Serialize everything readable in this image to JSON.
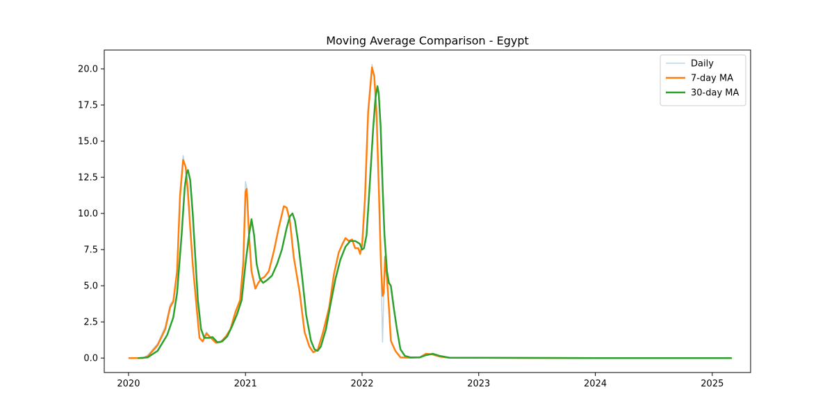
{
  "chart_data": {
    "type": "line",
    "title": "Moving Average Comparison - Egypt",
    "xlabel": "",
    "ylabel": "",
    "xlim": [
      "2019-10-17",
      "2025-05-01"
    ],
    "ylim": [
      -1.0,
      21.3
    ],
    "x_ticks": [
      "2020-01-01",
      "2021-01-01",
      "2022-01-01",
      "2023-01-01",
      "2024-01-01",
      "2025-01-01"
    ],
    "x_tick_labels": [
      "2020",
      "2021",
      "2022",
      "2023",
      "2024",
      "2025"
    ],
    "y_ticks": [
      0.0,
      2.5,
      5.0,
      7.5,
      10.0,
      12.5,
      15.0,
      17.5,
      20.0
    ],
    "y_tick_labels": [
      "0.0",
      "2.5",
      "5.0",
      "7.5",
      "10.0",
      "12.5",
      "15.0",
      "17.5",
      "20.0"
    ],
    "grid": false,
    "legend": "top-right",
    "series": [
      {
        "name": "Daily",
        "color": "#1f77b4",
        "opacity": 0.3,
        "width": 1.5,
        "points": [
          [
            "2020-01-03",
            0
          ],
          [
            "2020-02-15",
            0
          ],
          [
            "2020-03-01",
            0.2
          ],
          [
            "2020-04-01",
            1.0
          ],
          [
            "2020-04-25",
            2.2
          ],
          [
            "2020-05-10",
            3.7
          ],
          [
            "2020-05-20",
            4.0
          ],
          [
            "2020-06-01",
            6.0
          ],
          [
            "2020-06-10",
            11.5
          ],
          [
            "2020-06-20",
            14.0
          ],
          [
            "2020-06-28",
            13.0
          ],
          [
            "2020-07-05",
            11.0
          ],
          [
            "2020-07-12",
            9.0
          ],
          [
            "2020-07-20",
            6.5
          ],
          [
            "2020-08-01",
            3.5
          ],
          [
            "2020-08-10",
            1.4
          ],
          [
            "2020-08-20",
            1.2
          ],
          [
            "2020-09-01",
            1.8
          ],
          [
            "2020-09-15",
            1.4
          ],
          [
            "2020-10-01",
            1.05
          ],
          [
            "2020-10-15",
            1.1
          ],
          [
            "2020-11-01",
            1.5
          ],
          [
            "2020-11-15",
            2.0
          ],
          [
            "2020-12-01",
            3.2
          ],
          [
            "2020-12-15",
            4.0
          ],
          [
            "2020-12-25",
            7.0
          ],
          [
            "2021-01-01",
            12.2
          ],
          [
            "2021-01-05",
            11.8
          ],
          [
            "2021-01-12",
            8.5
          ],
          [
            "2021-01-20",
            6.0
          ],
          [
            "2021-02-01",
            4.8
          ],
          [
            "2021-02-10",
            5.2
          ],
          [
            "2021-02-20",
            5.5
          ],
          [
            "2021-03-01",
            5.6
          ],
          [
            "2021-03-15",
            6.0
          ],
          [
            "2021-04-01",
            7.5
          ],
          [
            "2021-04-15",
            9.0
          ],
          [
            "2021-05-01",
            10.5
          ],
          [
            "2021-05-10",
            10.4
          ],
          [
            "2021-05-20",
            9.5
          ],
          [
            "2021-06-01",
            7.0
          ],
          [
            "2021-06-20",
            4.5
          ],
          [
            "2021-07-05",
            1.8
          ],
          [
            "2021-07-20",
            0.8
          ],
          [
            "2021-08-01",
            0.4
          ],
          [
            "2021-08-15",
            0.55
          ],
          [
            "2021-09-01",
            1.8
          ],
          [
            "2021-09-20",
            3.5
          ],
          [
            "2021-10-05",
            5.8
          ],
          [
            "2021-10-20",
            7.3
          ],
          [
            "2021-11-01",
            7.9
          ],
          [
            "2021-11-10",
            8.3
          ],
          [
            "2021-11-20",
            8.1
          ],
          [
            "2021-12-01",
            8.2
          ],
          [
            "2021-12-10",
            7.6
          ],
          [
            "2021-12-20",
            7.6
          ],
          [
            "2021-12-26",
            7.2
          ],
          [
            "2022-01-01",
            7.8
          ],
          [
            "2022-01-10",
            11.0
          ],
          [
            "2022-01-20",
            17.0
          ],
          [
            "2022-02-01",
            20.3
          ],
          [
            "2022-02-08",
            19.5
          ],
          [
            "2022-02-15",
            17.0
          ],
          [
            "2022-02-22",
            12.0
          ],
          [
            "2022-03-01",
            6.5
          ],
          [
            "2022-03-06",
            1.1
          ],
          [
            "2022-03-10",
            4.3
          ],
          [
            "2022-03-14",
            7.1
          ],
          [
            "2022-03-20",
            5.5
          ],
          [
            "2022-03-26",
            3.5
          ],
          [
            "2022-04-01",
            1.2
          ],
          [
            "2022-04-15",
            0.5
          ],
          [
            "2022-05-01",
            0.05
          ],
          [
            "2022-06-01",
            0.02
          ],
          [
            "2022-07-01",
            0.05
          ],
          [
            "2022-07-20",
            0.3
          ],
          [
            "2022-08-10",
            0.25
          ],
          [
            "2022-09-01",
            0.1
          ],
          [
            "2022-10-01",
            0.02
          ],
          [
            "2023-01-01",
            0.02
          ],
          [
            "2023-06-01",
            0.01
          ],
          [
            "2024-01-01",
            0.0
          ],
          [
            "2025-03-01",
            0.0
          ]
        ]
      },
      {
        "name": "7-day MA",
        "color": "#ff7f0e",
        "opacity": 1,
        "width": 2.5,
        "points": [
          [
            "2020-01-03",
            0
          ],
          [
            "2020-02-15",
            0
          ],
          [
            "2020-03-01",
            0.1
          ],
          [
            "2020-04-01",
            0.9
          ],
          [
            "2020-04-25",
            2.0
          ],
          [
            "2020-05-10",
            3.5
          ],
          [
            "2020-05-20",
            3.9
          ],
          [
            "2020-06-01",
            6.0
          ],
          [
            "2020-06-10",
            11.2
          ],
          [
            "2020-06-20",
            13.7
          ],
          [
            "2020-06-28",
            13.2
          ],
          [
            "2020-07-05",
            11.5
          ],
          [
            "2020-07-12",
            9.0
          ],
          [
            "2020-07-20",
            6.5
          ],
          [
            "2020-08-01",
            3.5
          ],
          [
            "2020-08-10",
            1.4
          ],
          [
            "2020-08-20",
            1.15
          ],
          [
            "2020-09-01",
            1.7
          ],
          [
            "2020-09-15",
            1.4
          ],
          [
            "2020-10-01",
            1.05
          ],
          [
            "2020-10-15",
            1.1
          ],
          [
            "2020-11-01",
            1.5
          ],
          [
            "2020-11-15",
            2.0
          ],
          [
            "2020-12-01",
            3.2
          ],
          [
            "2020-12-15",
            4.0
          ],
          [
            "2020-12-25",
            6.5
          ],
          [
            "2021-01-01",
            11.5
          ],
          [
            "2021-01-05",
            11.7
          ],
          [
            "2021-01-12",
            8.5
          ],
          [
            "2021-01-20",
            6.0
          ],
          [
            "2021-02-01",
            4.8
          ],
          [
            "2021-02-10",
            5.2
          ],
          [
            "2021-02-20",
            5.5
          ],
          [
            "2021-03-01",
            5.6
          ],
          [
            "2021-03-15",
            6.0
          ],
          [
            "2021-04-01",
            7.5
          ],
          [
            "2021-04-15",
            9.0
          ],
          [
            "2021-05-01",
            10.5
          ],
          [
            "2021-05-10",
            10.4
          ],
          [
            "2021-05-20",
            9.5
          ],
          [
            "2021-06-01",
            7.0
          ],
          [
            "2021-06-20",
            4.5
          ],
          [
            "2021-07-05",
            1.8
          ],
          [
            "2021-07-20",
            0.8
          ],
          [
            "2021-08-01",
            0.4
          ],
          [
            "2021-08-15",
            0.55
          ],
          [
            "2021-09-01",
            1.8
          ],
          [
            "2021-09-20",
            3.5
          ],
          [
            "2021-10-05",
            5.8
          ],
          [
            "2021-10-20",
            7.3
          ],
          [
            "2021-11-01",
            7.9
          ],
          [
            "2021-11-10",
            8.3
          ],
          [
            "2021-11-20",
            8.1
          ],
          [
            "2021-12-01",
            8.2
          ],
          [
            "2021-12-10",
            7.6
          ],
          [
            "2021-12-20",
            7.6
          ],
          [
            "2021-12-26",
            7.2
          ],
          [
            "2022-01-01",
            7.8
          ],
          [
            "2022-01-10",
            11.0
          ],
          [
            "2022-01-20",
            17.0
          ],
          [
            "2022-02-01",
            20.1
          ],
          [
            "2022-02-08",
            19.5
          ],
          [
            "2022-02-15",
            17.0
          ],
          [
            "2022-02-22",
            12.0
          ],
          [
            "2022-03-01",
            6.5
          ],
          [
            "2022-03-06",
            4.3
          ],
          [
            "2022-03-10",
            4.5
          ],
          [
            "2022-03-14",
            7.0
          ],
          [
            "2022-03-20",
            5.5
          ],
          [
            "2022-03-26",
            3.5
          ],
          [
            "2022-04-01",
            1.2
          ],
          [
            "2022-04-15",
            0.5
          ],
          [
            "2022-05-01",
            0.05
          ],
          [
            "2022-06-01",
            0.02
          ],
          [
            "2022-07-01",
            0.05
          ],
          [
            "2022-07-20",
            0.3
          ],
          [
            "2022-08-10",
            0.25
          ],
          [
            "2022-09-01",
            0.1
          ],
          [
            "2022-10-01",
            0.02
          ],
          [
            "2023-01-01",
            0.02
          ],
          [
            "2023-06-01",
            0.01
          ],
          [
            "2024-01-01",
            0.0
          ],
          [
            "2025-03-01",
            0.0
          ]
        ]
      },
      {
        "name": "30-day MA",
        "color": "#2ca02c",
        "opacity": 1,
        "width": 2.5,
        "points": [
          [
            "2020-02-01",
            0
          ],
          [
            "2020-03-01",
            0.05
          ],
          [
            "2020-04-01",
            0.5
          ],
          [
            "2020-05-01",
            1.6
          ],
          [
            "2020-05-20",
            2.8
          ],
          [
            "2020-06-01",
            4.5
          ],
          [
            "2020-06-15",
            8.5
          ],
          [
            "2020-06-25",
            11.8
          ],
          [
            "2020-07-01",
            12.8
          ],
          [
            "2020-07-05",
            13.0
          ],
          [
            "2020-07-12",
            12.3
          ],
          [
            "2020-07-20",
            10.0
          ],
          [
            "2020-07-28",
            7.0
          ],
          [
            "2020-08-05",
            4.0
          ],
          [
            "2020-08-15",
            2.0
          ],
          [
            "2020-08-25",
            1.4
          ],
          [
            "2020-09-10",
            1.4
          ],
          [
            "2020-09-20",
            1.45
          ],
          [
            "2020-10-05",
            1.1
          ],
          [
            "2020-10-20",
            1.15
          ],
          [
            "2020-11-05",
            1.5
          ],
          [
            "2020-11-20",
            2.2
          ],
          [
            "2020-12-05",
            3.0
          ],
          [
            "2020-12-20",
            4.0
          ],
          [
            "2021-01-01",
            6.5
          ],
          [
            "2021-01-12",
            8.5
          ],
          [
            "2021-01-20",
            9.6
          ],
          [
            "2021-01-28",
            8.5
          ],
          [
            "2021-02-05",
            6.5
          ],
          [
            "2021-02-15",
            5.5
          ],
          [
            "2021-02-25",
            5.2
          ],
          [
            "2021-03-10",
            5.4
          ],
          [
            "2021-03-25",
            5.7
          ],
          [
            "2021-04-10",
            6.5
          ],
          [
            "2021-04-25",
            7.5
          ],
          [
            "2021-05-10",
            9.0
          ],
          [
            "2021-05-20",
            9.8
          ],
          [
            "2021-05-28",
            10.0
          ],
          [
            "2021-06-05",
            9.5
          ],
          [
            "2021-06-15",
            8.0
          ],
          [
            "2021-06-28",
            5.5
          ],
          [
            "2021-07-10",
            3.0
          ],
          [
            "2021-07-25",
            1.2
          ],
          [
            "2021-08-05",
            0.6
          ],
          [
            "2021-08-15",
            0.5
          ],
          [
            "2021-08-25",
            0.8
          ],
          [
            "2021-09-10",
            2.0
          ],
          [
            "2021-09-25",
            3.8
          ],
          [
            "2021-10-10",
            5.5
          ],
          [
            "2021-10-25",
            6.8
          ],
          [
            "2021-11-10",
            7.7
          ],
          [
            "2021-11-25",
            8.1
          ],
          [
            "2021-12-10",
            8.1
          ],
          [
            "2021-12-25",
            7.9
          ],
          [
            "2022-01-01",
            7.5
          ],
          [
            "2022-01-07",
            7.6
          ],
          [
            "2022-01-15",
            8.5
          ],
          [
            "2022-01-25",
            12.0
          ],
          [
            "2022-02-05",
            16.0
          ],
          [
            "2022-02-12",
            18.0
          ],
          [
            "2022-02-18",
            18.8
          ],
          [
            "2022-02-22",
            18.3
          ],
          [
            "2022-02-28",
            16.0
          ],
          [
            "2022-03-06",
            12.0
          ],
          [
            "2022-03-12",
            8.5
          ],
          [
            "2022-03-20",
            6.0
          ],
          [
            "2022-03-26",
            5.2
          ],
          [
            "2022-04-01",
            5.0
          ],
          [
            "2022-04-10",
            3.5
          ],
          [
            "2022-04-20",
            2.0
          ],
          [
            "2022-05-01",
            0.6
          ],
          [
            "2022-05-15",
            0.15
          ],
          [
            "2022-06-01",
            0.05
          ],
          [
            "2022-07-01",
            0.05
          ],
          [
            "2022-07-20",
            0.2
          ],
          [
            "2022-08-10",
            0.3
          ],
          [
            "2022-09-01",
            0.15
          ],
          [
            "2022-10-01",
            0.03
          ],
          [
            "2023-01-01",
            0.02
          ],
          [
            "2023-06-01",
            0.01
          ],
          [
            "2024-01-01",
            0.0
          ],
          [
            "2025-03-01",
            0.0
          ]
        ]
      }
    ]
  }
}
